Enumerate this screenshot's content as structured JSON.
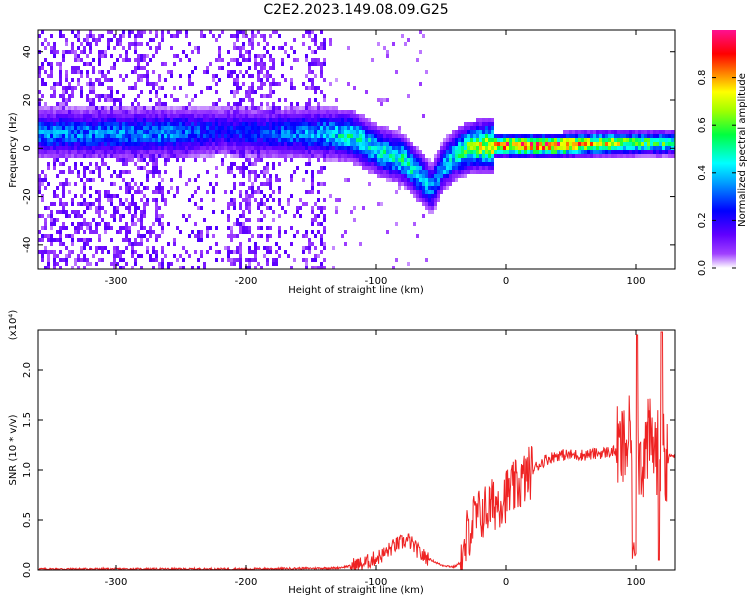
{
  "title": "C2E2.2023.149.08.09.G25",
  "chart_data": [
    {
      "type": "heatmap",
      "xlabel": "Height of straight line (km)",
      "ylabel": "Frequency (Hz)",
      "xlim": [
        -360,
        130
      ],
      "ylim": [
        -50,
        49
      ],
      "x_ticks": [
        -300,
        -200,
        -100,
        0,
        100
      ],
      "x_tick_labels": [
        "-300",
        "-200",
        "-100",
        "0",
        "100"
      ],
      "y_ticks": [
        -40,
        -20,
        0,
        20,
        40
      ],
      "y_tick_labels": [
        "-40",
        "-20",
        "0",
        "20",
        "40"
      ],
      "colorbar": {
        "label": "Normalized spectral amplitude",
        "range": [
          0,
          1
        ],
        "ticks": [
          0.0,
          0.2,
          0.4,
          0.6,
          0.8
        ],
        "tick_labels": [
          "0.0",
          "0.2",
          "0.4",
          "0.6",
          "0.8"
        ],
        "colors": [
          "#ffffff",
          "#8000ff",
          "#0000ff",
          "#00ffff",
          "#00ff00",
          "#ffff00",
          "#ff8000",
          "#ff0000",
          "#ff00a0"
        ]
      },
      "ridge": {
        "height_km": [
          -255,
          -220,
          -180,
          -140,
          -120,
          -100,
          -80,
          -65,
          -58,
          -50,
          -40,
          -30,
          -20,
          0,
          40,
          80,
          100,
          130
        ],
        "frequency_hz": [
          7,
          8,
          7,
          7,
          6,
          0,
          -4,
          -12,
          -16,
          -7,
          -2,
          1,
          2,
          2,
          2,
          3,
          3,
          3
        ],
        "amplitude": [
          0.35,
          0.25,
          0.3,
          0.4,
          0.5,
          0.45,
          0.5,
          0.45,
          0.35,
          0.4,
          0.45,
          0.6,
          0.7,
          0.85,
          0.9,
          0.7,
          0.6,
          0.55
        ]
      },
      "noise_region_km": [
        -360,
        -140
      ]
    },
    {
      "type": "line",
      "xlabel": "Height of straight line (km)",
      "ylabel": "SNR (10 * v/v)",
      "y_scale_label": "(x10⁴)",
      "xlim": [
        -360,
        130
      ],
      "ylim": [
        0,
        2.4
      ],
      "x_ticks": [
        -300,
        -200,
        -100,
        0,
        100
      ],
      "x_tick_labels": [
        "-300",
        "-200",
        "-100",
        "0",
        "100"
      ],
      "y_ticks": [
        0,
        0.5,
        1.0,
        1.5,
        2.0
      ],
      "y_tick_labels": [
        "0.0",
        "0.5",
        "1.0",
        "1.5",
        "2.0"
      ],
      "series": [
        {
          "color": "#ee2222",
          "x": [
            -360,
            -300,
            -200,
            -130,
            -110,
            -95,
            -85,
            -75,
            -65,
            -50,
            -40,
            -32,
            -30,
            -25,
            -20,
            -10,
            0,
            10,
            20,
            30,
            40,
            60,
            80,
            90,
            95,
            100,
            105,
            110,
            115,
            120,
            125,
            130
          ],
          "y": [
            0.01,
            0.01,
            0.01,
            0.02,
            0.06,
            0.15,
            0.25,
            0.3,
            0.15,
            0.05,
            0.03,
            0.1,
            0.35,
            0.5,
            0.55,
            0.65,
            0.75,
            0.85,
            1.0,
            1.1,
            1.15,
            1.15,
            1.18,
            1.2,
            1.3,
            1.2,
            1.1,
            1.3,
            1.2,
            1.12,
            1.14,
            1.14
          ]
        }
      ]
    }
  ]
}
